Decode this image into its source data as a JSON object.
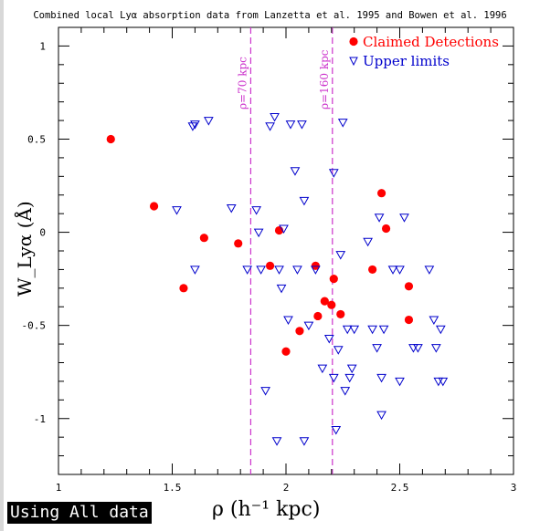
{
  "chart_data": {
    "type": "scatter",
    "title": "Combined local Lyα absorption data from Lanzetta et al. 1995 and Bowen et al. 1996",
    "xlabel": "ρ  (h⁻¹ kpc)",
    "ylabel": "W_Lyα  (Å)",
    "xlim": [
      1,
      3
    ],
    "ylim": [
      -1.3,
      1.1
    ],
    "x_ticks": [
      "1",
      "1.5",
      "2",
      "2.5",
      "3"
    ],
    "y_ticks": [
      "1",
      "0.5",
      "0",
      "-0.5",
      "-1"
    ],
    "grid": false,
    "legend_position": "top-right",
    "reference_lines": [
      {
        "x": 1.845,
        "label": "ρ=70 kpc",
        "color": "#cc33cc"
      },
      {
        "x": 2.204,
        "label": "ρ=160 kpc",
        "color": "#cc33cc"
      }
    ],
    "series": [
      {
        "name": "Claimed Detections",
        "marker": "filled-circle",
        "color": "#ff0000",
        "points": [
          [
            1.23,
            0.5
          ],
          [
            1.42,
            0.14
          ],
          [
            1.55,
            -0.3
          ],
          [
            1.64,
            -0.03
          ],
          [
            1.79,
            -0.06
          ],
          [
            1.93,
            -0.18
          ],
          [
            1.97,
            0.01
          ],
          [
            2.0,
            -0.64
          ],
          [
            2.06,
            -0.53
          ],
          [
            2.13,
            -0.18
          ],
          [
            2.14,
            -0.45
          ],
          [
            2.17,
            -0.37
          ],
          [
            2.2,
            -0.39
          ],
          [
            2.21,
            -0.25
          ],
          [
            2.24,
            -0.44
          ],
          [
            2.38,
            -0.2
          ],
          [
            2.42,
            0.21
          ],
          [
            2.44,
            0.02
          ],
          [
            2.54,
            -0.29
          ],
          [
            2.54,
            -0.47
          ]
        ]
      },
      {
        "name": "Upper limits",
        "marker": "open-triangle-down",
        "color": "#0000cc",
        "points": [
          [
            1.52,
            0.12
          ],
          [
            1.59,
            0.57
          ],
          [
            1.6,
            0.58
          ],
          [
            1.6,
            -0.2
          ],
          [
            1.66,
            0.6
          ],
          [
            1.76,
            0.13
          ],
          [
            1.83,
            -0.2
          ],
          [
            1.87,
            0.12
          ],
          [
            1.88,
            0.0
          ],
          [
            1.89,
            -0.2
          ],
          [
            1.91,
            -0.85
          ],
          [
            1.93,
            0.57
          ],
          [
            1.95,
            0.62
          ],
          [
            1.96,
            -1.12
          ],
          [
            1.97,
            -0.2
          ],
          [
            1.98,
            -0.3
          ],
          [
            1.99,
            0.02
          ],
          [
            2.01,
            -0.47
          ],
          [
            2.02,
            0.58
          ],
          [
            2.04,
            0.33
          ],
          [
            2.05,
            -0.2
          ],
          [
            2.07,
            0.58
          ],
          [
            2.08,
            0.17
          ],
          [
            2.08,
            -1.12
          ],
          [
            2.1,
            -0.5
          ],
          [
            2.13,
            -0.2
          ],
          [
            2.16,
            -0.73
          ],
          [
            2.19,
            -0.57
          ],
          [
            2.21,
            0.32
          ],
          [
            2.21,
            -0.78
          ],
          [
            2.22,
            -1.06
          ],
          [
            2.23,
            -0.63
          ],
          [
            2.24,
            -0.12
          ],
          [
            2.25,
            0.59
          ],
          [
            2.26,
            -0.85
          ],
          [
            2.27,
            -0.52
          ],
          [
            2.28,
            -0.78
          ],
          [
            2.29,
            -0.73
          ],
          [
            2.3,
            -0.52
          ],
          [
            2.36,
            -0.05
          ],
          [
            2.38,
            -0.52
          ],
          [
            2.4,
            -0.62
          ],
          [
            2.41,
            0.08
          ],
          [
            2.42,
            -0.78
          ],
          [
            2.42,
            -0.98
          ],
          [
            2.43,
            -0.52
          ],
          [
            2.47,
            -0.2
          ],
          [
            2.5,
            -0.8
          ],
          [
            2.5,
            -0.2
          ],
          [
            2.52,
            0.08
          ],
          [
            2.56,
            -0.62
          ],
          [
            2.58,
            -0.62
          ],
          [
            2.63,
            -0.2
          ],
          [
            2.65,
            -0.47
          ],
          [
            2.66,
            -0.62
          ],
          [
            2.67,
            -0.8
          ],
          [
            2.68,
            -0.52
          ],
          [
            2.69,
            -0.8
          ]
        ]
      }
    ]
  },
  "footer": {
    "mode_label": "Using All data"
  }
}
